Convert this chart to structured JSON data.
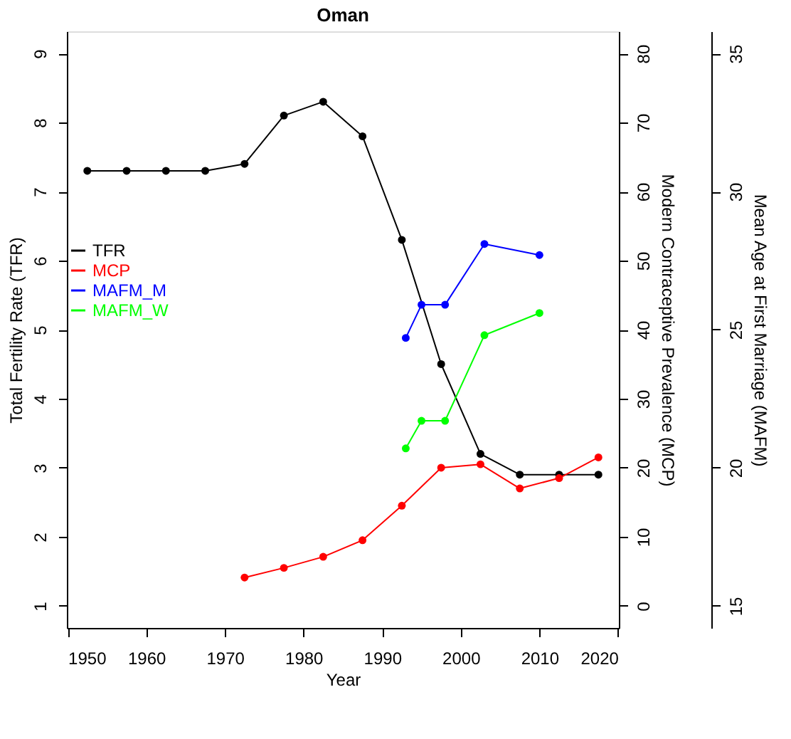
{
  "chart_data": {
    "type": "line",
    "title": "Oman",
    "xlabel": "Year",
    "ylabel": "Total Fertility Rate (TFR)",
    "y2label": "Modern Contraceptive Prevalence (MCP)",
    "y3label": "Mean Age at First Marriage (MAFM)",
    "x": [
      1952.5,
      1957.5,
      1962.5,
      1967.5,
      1972.5,
      1977.5,
      1982.5,
      1987.5,
      1992.5,
      1997.5,
      2002.5,
      2007.5,
      2012.5,
      2017.5
    ],
    "series": [
      {
        "name": "TFR",
        "color": "#000000",
        "values": [
          7.3,
          7.3,
          7.3,
          7.3,
          7.4,
          8.1,
          8.3,
          7.8,
          6.3,
          4.5,
          3.2,
          2.9,
          2.9,
          2.9
        ]
      },
      {
        "name": "MCP",
        "color": "#ff0000",
        "axis": "y2",
        "values": [
          null,
          null,
          null,
          null,
          4.1,
          5.5,
          7.1,
          9.5,
          14.5,
          20,
          20.5,
          17,
          18.5,
          21.5
        ]
      },
      {
        "name": "MAFM_M",
        "color": "#0000ff",
        "axis": "y3",
        "x": [
          1993,
          1995,
          1998,
          2003,
          2010
        ],
        "values": [
          24.7,
          25.9,
          25.9,
          28.1,
          27.7
        ]
      },
      {
        "name": "MAFM_W",
        "color": "#00ff00",
        "axis": "y3",
        "x": [
          1993,
          1995,
          1998,
          2003,
          2010
        ],
        "values": [
          20.7,
          21.7,
          21.7,
          24.8,
          25.6
        ]
      }
    ],
    "xlim": [
      1949.9,
      2020.1
    ],
    "xticks": [
      1950,
      1960,
      1970,
      1980,
      1990,
      2000,
      2010,
      2020
    ],
    "ylim": [
      0.68,
      9.32
    ],
    "yticks": [
      1,
      2,
      3,
      4,
      5,
      6,
      7,
      8,
      9
    ],
    "y2lim": [
      -3.2,
      83.2
    ],
    "y2ticks": [
      0,
      10,
      20,
      30,
      40,
      50,
      60,
      70,
      80
    ],
    "y3lim": [
      14.2,
      35.8
    ],
    "y3ticks": [
      15,
      20,
      25,
      30,
      35
    ],
    "legend": "left",
    "marker": "circle",
    "line_style": "solid",
    "grid": false
  }
}
